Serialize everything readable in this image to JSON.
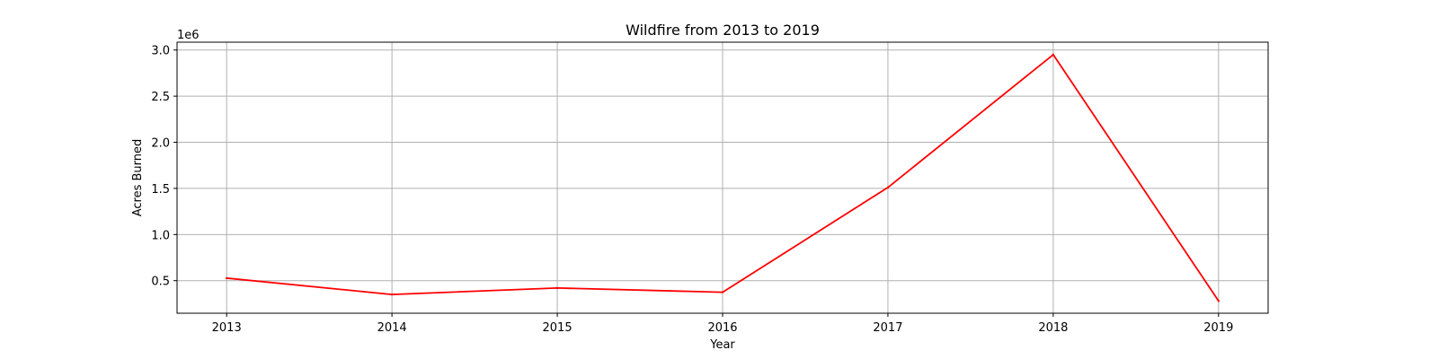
{
  "chart_data": {
    "type": "line",
    "title": "Wildfire from 2013 to 2019",
    "xlabel": "Year",
    "ylabel": "Acres Burned",
    "y_offset_label": "1e6",
    "x": [
      2013,
      2014,
      2015,
      2016,
      2017,
      2018,
      2019
    ],
    "x_tick_labels": [
      "2013",
      "2014",
      "2015",
      "2016",
      "2017",
      "2018",
      "2019"
    ],
    "series": [
      {
        "values": [
          527000,
          350000,
          420000,
          375000,
          1510000,
          2950000,
          280000
        ],
        "color": "#ff0000"
      }
    ],
    "y_ticks": [
      500000,
      1000000,
      1500000,
      2000000,
      2500000,
      3000000
    ],
    "y_tick_labels": [
      "0.5",
      "1.0",
      "1.5",
      "2.0",
      "2.5",
      "3.0"
    ],
    "xlim": [
      2012.7,
      2019.3
    ],
    "ylim": [
      147000,
      3085000
    ],
    "grid": true,
    "grid_color": "#b0b0b0"
  }
}
